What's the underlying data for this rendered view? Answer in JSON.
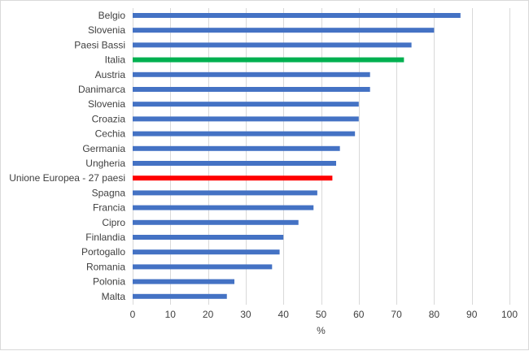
{
  "chart_data": {
    "type": "bar",
    "orientation": "horizontal",
    "categories": [
      "Belgio",
      "Slovenia",
      "Paesi Bassi",
      "Italia",
      "Austria",
      "Danimarca",
      "Slovenia",
      "Croazia",
      "Cechia",
      "Germania",
      "Ungheria",
      "Unione Europea - 27 paesi",
      "Spagna",
      "Francia",
      "Cipro",
      "Finlandia",
      "Portogallo",
      "Romania",
      "Polonia",
      "Malta"
    ],
    "values": [
      87,
      80,
      74,
      72,
      63,
      63,
      60,
      60,
      59,
      55,
      54,
      53,
      49,
      48,
      44,
      40,
      39,
      37,
      27,
      25
    ],
    "colors": [
      "#4472c4",
      "#4472c4",
      "#4472c4",
      "#00b050",
      "#4472c4",
      "#4472c4",
      "#4472c4",
      "#4472c4",
      "#4472c4",
      "#4472c4",
      "#4472c4",
      "#ff0000",
      "#4472c4",
      "#4472c4",
      "#4472c4",
      "#4472c4",
      "#4472c4",
      "#4472c4",
      "#4472c4",
      "#4472c4"
    ],
    "xlabel": "%",
    "ylabel": "",
    "xlim": [
      0,
      100
    ],
    "xticks": [
      0,
      10,
      20,
      30,
      40,
      50,
      60,
      70,
      80,
      90,
      100
    ],
    "grid": "vertical",
    "legend": "none"
  }
}
